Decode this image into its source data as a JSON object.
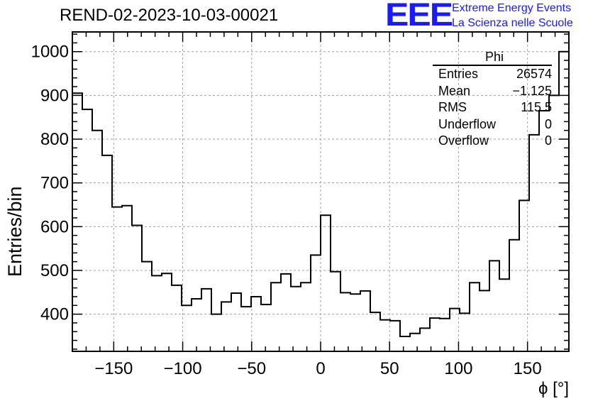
{
  "title": "REND-02-2023-10-03-00021",
  "logo": {
    "mark": "EEE",
    "line1": "Extreme Energy Events",
    "line2": "La Scienza nelle Scuole",
    "color": "#1a1aff"
  },
  "stats": {
    "name": "Phi",
    "rows": [
      {
        "label": "Entries",
        "value": "26574"
      },
      {
        "label": "Mean",
        "value": "−1.125"
      },
      {
        "label": "RMS",
        "value": "115.5"
      },
      {
        "label": "Underflow",
        "value": "0"
      },
      {
        "label": "Overflow",
        "value": "0"
      }
    ]
  },
  "chart_data": {
    "type": "histogram",
    "title": "REND-02-2023-10-03-00021",
    "xlabel": "ϕ [°]",
    "ylabel": "Entries/bin",
    "xlim": [
      -180,
      180
    ],
    "ylim": [
      315,
      1045
    ],
    "xticks": [
      -150,
      -100,
      -50,
      0,
      50,
      100,
      150
    ],
    "yticks": [
      400,
      500,
      600,
      700,
      800,
      900,
      1000
    ],
    "grid": true,
    "bin_width": 7.2,
    "values": [
      905,
      868,
      820,
      763,
      645,
      648,
      603,
      520,
      488,
      493,
      466,
      420,
      435,
      458,
      400,
      428,
      448,
      417,
      440,
      422,
      472,
      492,
      463,
      472,
      535,
      626,
      497,
      449,
      446,
      453,
      404,
      387,
      385,
      349,
      356,
      368,
      391,
      390,
      413,
      402,
      472,
      454,
      522,
      480,
      570,
      660,
      810,
      865,
      900,
      1000
    ]
  }
}
